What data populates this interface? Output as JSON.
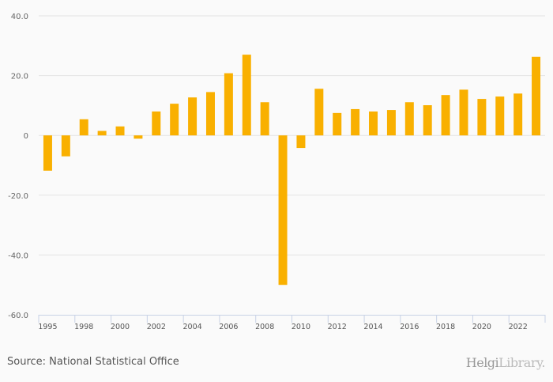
{
  "chart_data": {
    "type": "bar",
    "title": "",
    "xlabel": "",
    "ylabel": "",
    "ylim": [
      -60,
      40
    ],
    "yticks": [
      "40.0",
      "20.0",
      "0",
      "-20.0",
      "-40.0",
      "-60.0"
    ],
    "ytick_values": [
      40,
      20,
      0,
      -20,
      -40,
      -60
    ],
    "grid": true,
    "categories": [
      "1995",
      "1997",
      "1998",
      "1999",
      "2000",
      "2001",
      "2002",
      "2003",
      "2004",
      "2005",
      "2006",
      "2007",
      "2008",
      "2009",
      "2010",
      "2011",
      "2012",
      "2013",
      "2014",
      "2015",
      "2016",
      "2017",
      "2018",
      "2019",
      "2020",
      "2021",
      "2022",
      "2023"
    ],
    "xtick_labels": [
      "1995",
      "1998",
      "2000",
      "2002",
      "2004",
      "2006",
      "2008",
      "2010",
      "2012",
      "2014",
      "2016",
      "2018",
      "2020",
      "2022"
    ],
    "xtick_label_indices": [
      0,
      2,
      4,
      6,
      8,
      10,
      12,
      14,
      16,
      18,
      20,
      22,
      24,
      26
    ],
    "values": [
      -11.8,
      -7.0,
      5.4,
      1.5,
      3.0,
      -1.1,
      8.0,
      10.6,
      12.7,
      14.5,
      20.8,
      27.0,
      11.1,
      -50.0,
      -4.2,
      15.6,
      7.5,
      8.8,
      8.0,
      8.5,
      11.1,
      10.1,
      13.5,
      15.3,
      12.2,
      13.0,
      14.0,
      26.3
    ],
    "bar_color": "#f9b000"
  },
  "footer": {
    "source": "Source: National Statistical Office",
    "logo_main": "Helgi",
    "logo_sub": "Library."
  }
}
